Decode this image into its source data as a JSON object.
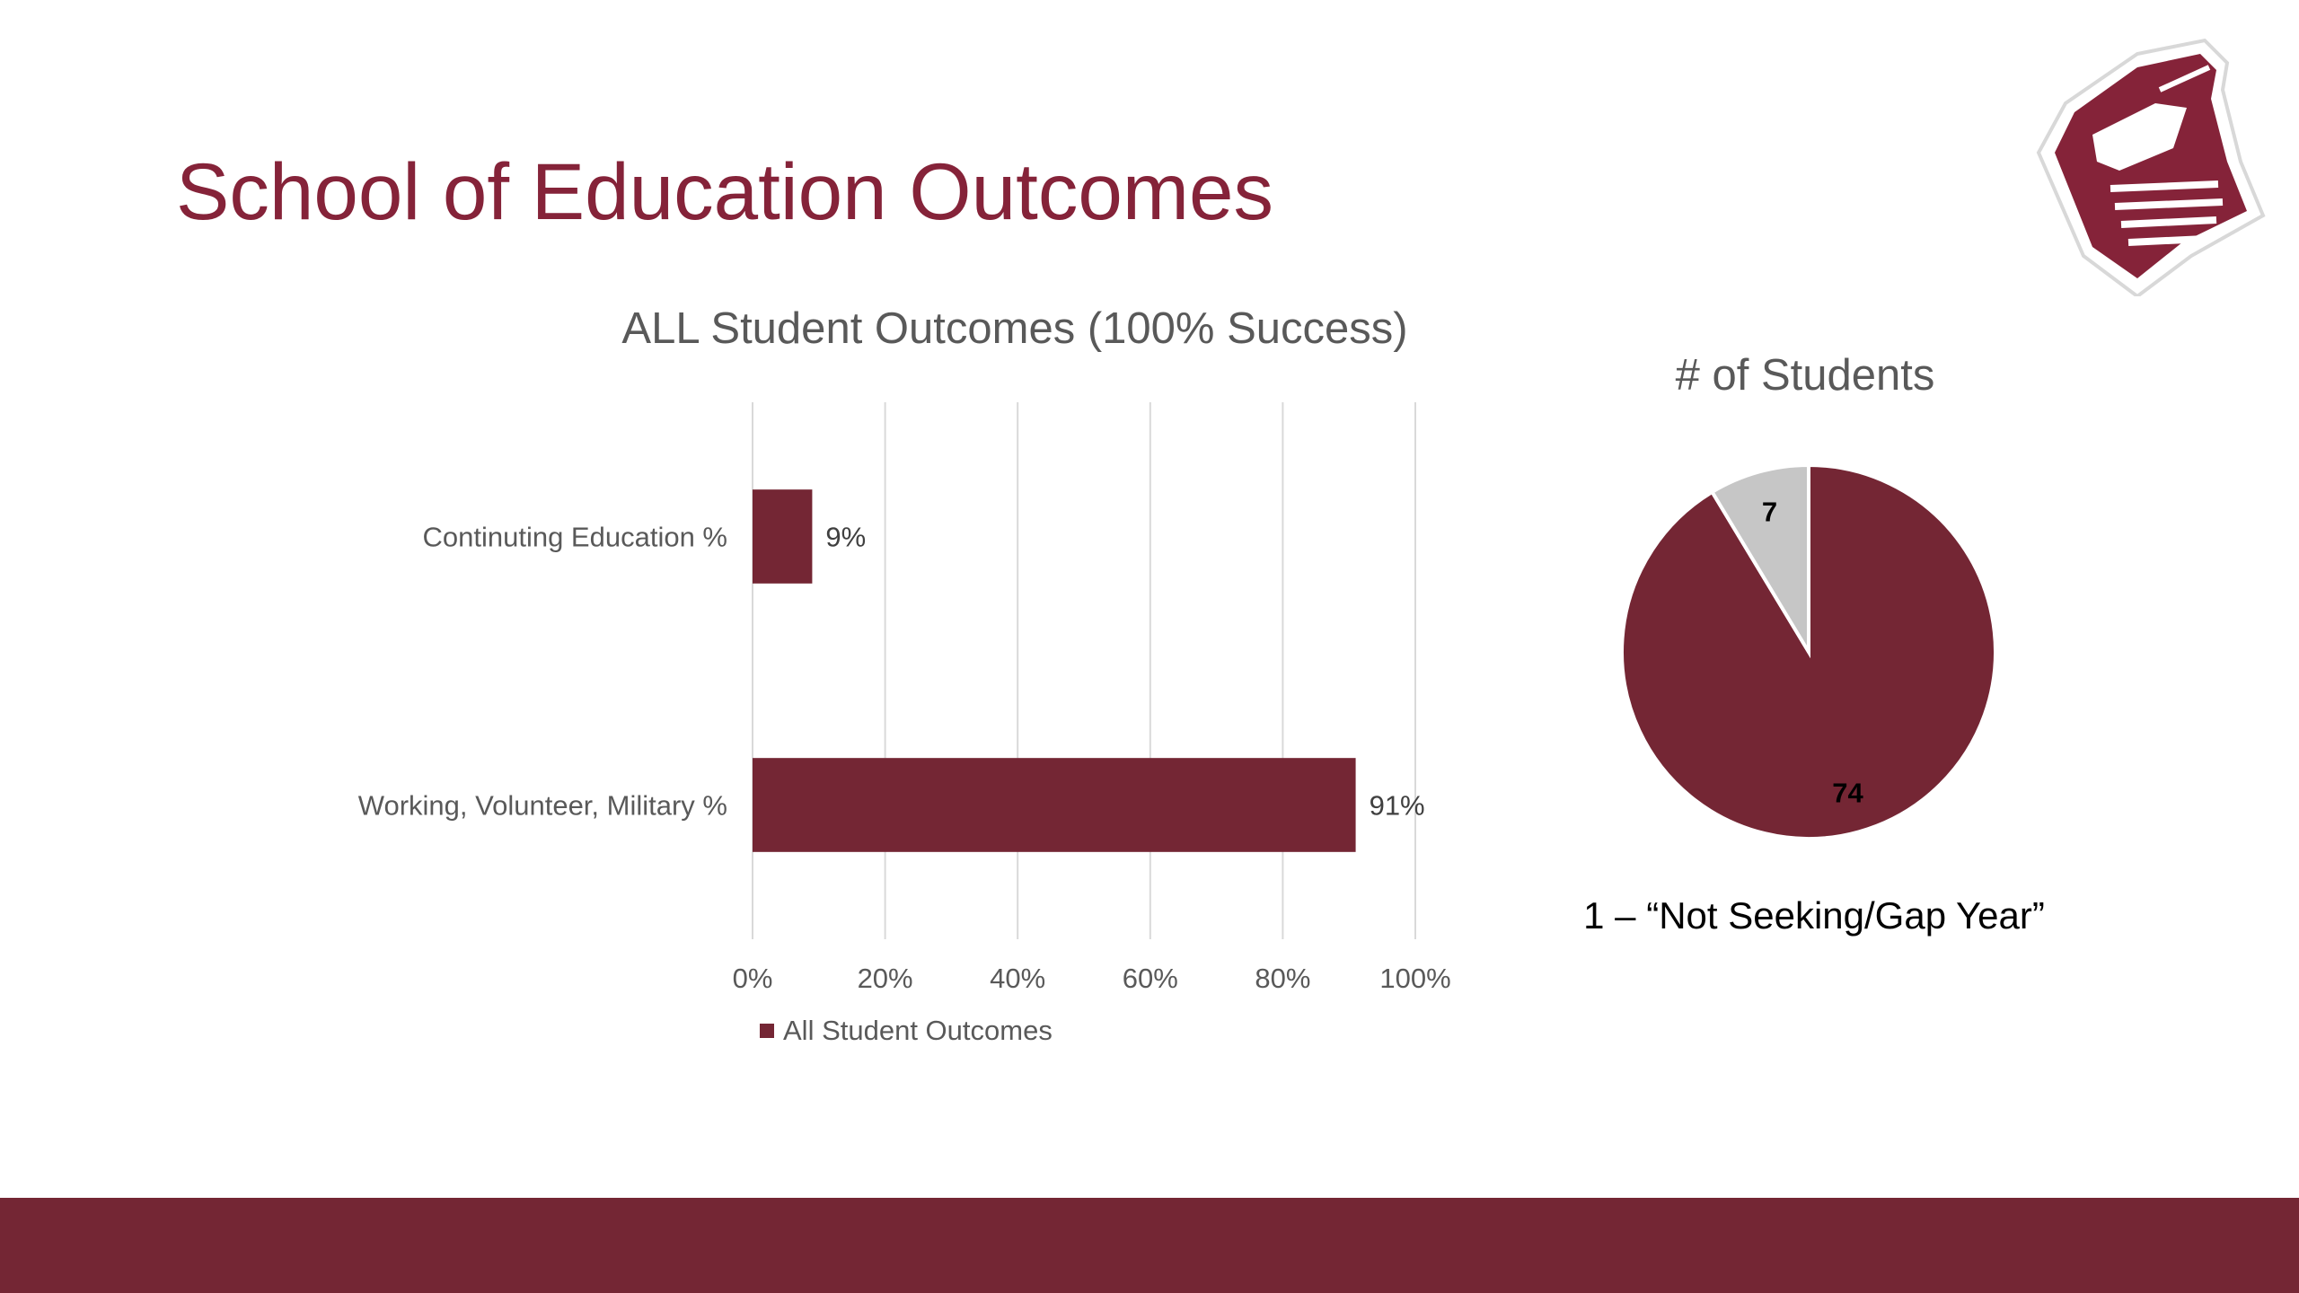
{
  "slide": {
    "title": "School of Education Outcomes",
    "note": "1 – “Not Seeking/Gap Year”",
    "logo": "knight-helmet-logo",
    "colors": {
      "accent": "#852339",
      "bar": "#742634",
      "slice_secondary": "#C6C6C6",
      "footer": "#742634",
      "text": "#595959"
    }
  },
  "chart_data": [
    {
      "type": "bar",
      "orientation": "horizontal",
      "title": "ALL Student Outcomes (100% Success)",
      "categories": [
        "Continuting Education %",
        "Working, Volunteer, Military %"
      ],
      "series": [
        {
          "name": "All Student Outcomes",
          "values": [
            0.09,
            0.91
          ]
        }
      ],
      "data_labels": [
        "9%",
        "91%"
      ],
      "x_ticks": [
        "0%",
        "20%",
        "40%",
        "60%",
        "80%",
        "100%"
      ],
      "xlim": [
        0,
        1
      ],
      "grid": true,
      "legend": "bottom"
    },
    {
      "type": "pie",
      "title": "# of Students",
      "values": [
        74,
        7
      ],
      "data_labels": [
        "74",
        "7"
      ],
      "colors": [
        "#742634",
        "#C6C6C6"
      ]
    }
  ]
}
